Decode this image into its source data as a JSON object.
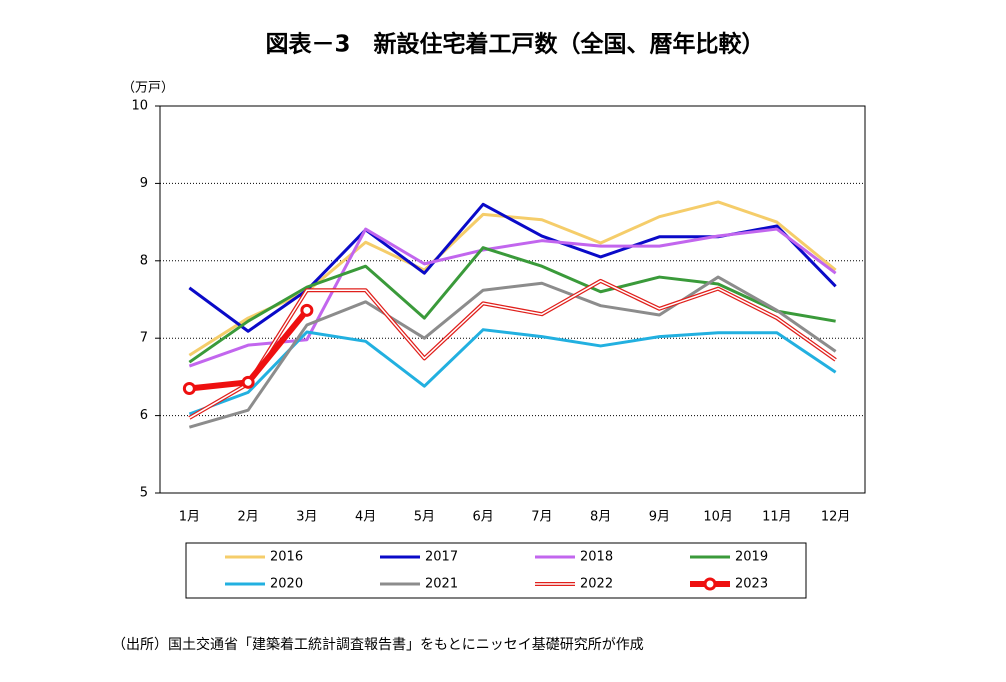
{
  "chart_data": {
    "type": "line",
    "title": "図表－3　新設住宅着工戸数（全国、暦年比較）",
    "ylabel": "（万戸）",
    "source": "（出所）国土交通省「建築着工統計調査報告書」をもとにニッセイ基礎研究所が作成",
    "categories": [
      "1月",
      "2月",
      "3月",
      "4月",
      "5月",
      "6月",
      "7月",
      "8月",
      "9月",
      "10月",
      "11月",
      "12月"
    ],
    "ylim": [
      5,
      10
    ],
    "yticks": [
      5,
      6,
      7,
      8,
      9,
      10
    ],
    "grid": true,
    "series": [
      {
        "name": "2016",
        "color": "#f5cd6a",
        "values": [
          6.78,
          7.26,
          7.6,
          8.24,
          7.88,
          8.6,
          8.53,
          8.23,
          8.57,
          8.76,
          8.5,
          7.88
        ]
      },
      {
        "name": "2017",
        "color": "#0a0ac8",
        "values": [
          7.65,
          7.09,
          7.62,
          8.4,
          7.84,
          8.73,
          8.32,
          8.05,
          8.31,
          8.31,
          8.45,
          7.67
        ]
      },
      {
        "name": "2018",
        "color": "#c266ee",
        "values": [
          6.64,
          6.91,
          6.98,
          8.41,
          7.96,
          8.14,
          8.26,
          8.19,
          8.19,
          8.32,
          8.41,
          7.84
        ]
      },
      {
        "name": "2019",
        "color": "#3a9a3a",
        "values": [
          6.69,
          7.22,
          7.66,
          7.93,
          7.26,
          8.17,
          7.93,
          7.6,
          7.79,
          7.7,
          7.35,
          7.22
        ]
      },
      {
        "name": "2020",
        "color": "#22b0e0",
        "values": [
          6.02,
          6.3,
          7.08,
          6.96,
          6.38,
          7.11,
          7.02,
          6.9,
          7.02,
          7.07,
          7.07,
          6.56
        ]
      },
      {
        "name": "2021",
        "color": "#8c8c8c",
        "values": [
          5.85,
          6.07,
          7.17,
          7.47,
          7.0,
          7.62,
          7.71,
          7.42,
          7.3,
          7.79,
          7.36,
          6.83
        ]
      },
      {
        "name": "2022",
        "color": "#e0201c",
        "style": "double",
        "values": [
          5.97,
          6.41,
          7.62,
          7.62,
          6.74,
          7.45,
          7.31,
          7.74,
          7.38,
          7.64,
          7.26,
          6.72
        ]
      },
      {
        "name": "2023",
        "color": "#ee1010",
        "style": "marker",
        "values": [
          6.35,
          6.43,
          7.36,
          null,
          null,
          null,
          null,
          null,
          null,
          null,
          null,
          null
        ]
      }
    ]
  }
}
